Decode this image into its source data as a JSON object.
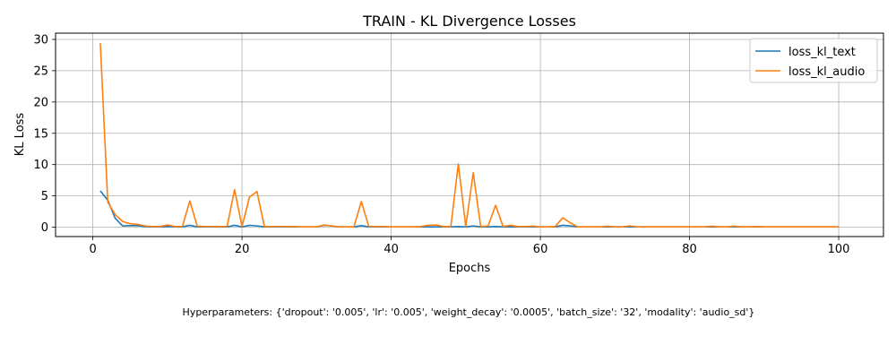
{
  "chart_data": {
    "type": "line",
    "title": "TRAIN - KL Divergence Losses",
    "xlabel": "Epochs",
    "ylabel": "KL Loss",
    "xlim": [
      -5,
      106
    ],
    "ylim": [
      -1.5,
      31
    ],
    "xticks": [
      "0",
      "20",
      "40",
      "60",
      "80",
      "100"
    ],
    "yticks": [
      "0",
      "5",
      "10",
      "15",
      "20",
      "25",
      "30"
    ],
    "grid": true,
    "legend_position": "top-right",
    "x": [
      1,
      2,
      3,
      4,
      5,
      6,
      7,
      8,
      9,
      10,
      11,
      12,
      13,
      14,
      15,
      16,
      17,
      18,
      19,
      20,
      21,
      22,
      23,
      24,
      25,
      26,
      27,
      28,
      29,
      30,
      31,
      32,
      33,
      34,
      35,
      36,
      37,
      38,
      39,
      40,
      41,
      42,
      43,
      44,
      45,
      46,
      47,
      48,
      49,
      50,
      51,
      52,
      53,
      54,
      55,
      56,
      57,
      58,
      59,
      60,
      61,
      62,
      63,
      64,
      65,
      66,
      67,
      68,
      69,
      70,
      71,
      72,
      73,
      74,
      75,
      76,
      77,
      78,
      79,
      80,
      81,
      82,
      83,
      84,
      85,
      86,
      87,
      88,
      89,
      90,
      91,
      92,
      93,
      94,
      95,
      96,
      97,
      98,
      99,
      100
    ],
    "series": [
      {
        "name": "loss_kl_text",
        "color": "#1f77b4",
        "values": [
          5.8,
          4.3,
          1.4,
          0.2,
          0.25,
          0.25,
          0.1,
          0.05,
          0.05,
          0.1,
          0.05,
          0.05,
          0.3,
          0.05,
          0.05,
          0.05,
          0.05,
          0.05,
          0.3,
          0.05,
          0.3,
          0.2,
          0.05,
          0.05,
          0.05,
          0.05,
          0.05,
          0.05,
          0.05,
          0.05,
          0.3,
          0.2,
          0.05,
          0.05,
          0.05,
          0.25,
          0.05,
          0.05,
          0.05,
          0.05,
          0.05,
          0.05,
          0.05,
          0.05,
          0.05,
          0.05,
          0.05,
          0.05,
          0.1,
          0.05,
          0.2,
          0.05,
          0.05,
          0.1,
          0.05,
          0.05,
          0.05,
          0.05,
          0.05,
          0.05,
          0.05,
          0.05,
          0.3,
          0.2,
          0.05,
          0.05,
          0.05,
          0.05,
          0.05,
          0.05,
          0.05,
          0.05,
          0.05,
          0.05,
          0.05,
          0.05,
          0.05,
          0.05,
          0.05,
          0.05,
          0.05,
          0.05,
          0.05,
          0.05,
          0.05,
          0.05,
          0.05,
          0.05,
          0.05,
          0.05,
          0.05,
          0.05,
          0.05,
          0.05,
          0.05,
          0.05,
          0.05,
          0.05,
          0.05,
          0.05
        ]
      },
      {
        "name": "loss_kl_audio",
        "color": "#ff7f0e",
        "values": [
          29.4,
          4.0,
          2.0,
          0.9,
          0.55,
          0.45,
          0.2,
          0.1,
          0.1,
          0.35,
          0.1,
          0.1,
          4.2,
          0.15,
          0.1,
          0.1,
          0.1,
          0.1,
          6.0,
          0.1,
          4.8,
          5.7,
          0.1,
          0.1,
          0.1,
          0.1,
          0.1,
          0.05,
          0.05,
          0.05,
          0.35,
          0.2,
          0.05,
          0.05,
          0.05,
          4.1,
          0.1,
          0.1,
          0.1,
          0.05,
          0.05,
          0.05,
          0.05,
          0.1,
          0.3,
          0.35,
          0.1,
          0.1,
          10.1,
          0.1,
          8.7,
          0.1,
          0.2,
          3.5,
          0.1,
          0.3,
          0.1,
          0.1,
          0.15,
          0.05,
          0.05,
          0.1,
          1.5,
          0.7,
          0.05,
          0.05,
          0.05,
          0.05,
          0.15,
          0.05,
          0.05,
          0.2,
          0.05,
          0.05,
          0.05,
          0.05,
          0.05,
          0.05,
          0.05,
          0.05,
          0.05,
          0.05,
          0.15,
          0.05,
          0.05,
          0.15,
          0.05,
          0.05,
          0.1,
          0.05,
          0.05,
          0.05,
          0.05,
          0.05,
          0.05,
          0.05,
          0.05,
          0.05,
          0.05,
          0.05
        ]
      }
    ]
  },
  "hyperparameters_text": "Hyperparameters: {'dropout': '0.005', 'lr': '0.005', 'weight_decay': '0.0005', 'batch_size': '32', 'modality': 'audio_sd'}"
}
